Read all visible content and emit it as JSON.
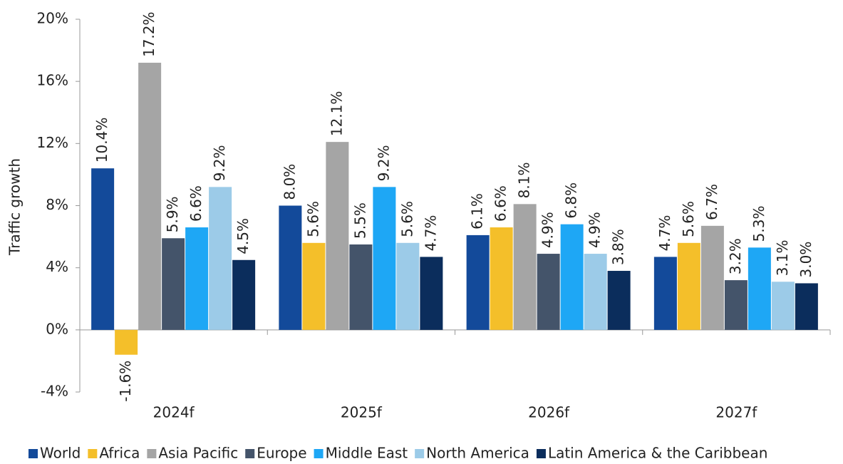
{
  "chart_data": {
    "type": "bar",
    "y_label": "Traffic growth",
    "categories": [
      "2024f",
      "2025f",
      "2026f",
      "2027f"
    ],
    "series": [
      {
        "name": "World",
        "color": "#134a9a",
        "values": [
          10.4,
          8.0,
          6.1,
          4.7
        ],
        "value_labels": [
          "10.4%",
          "8.0%",
          "6.1%",
          "4.7%"
        ]
      },
      {
        "name": "Africa",
        "color": "#f4bf2a",
        "values": [
          -1.6,
          5.6,
          6.6,
          5.6
        ],
        "value_labels": [
          "-1.6%",
          "5.6%",
          "6.6%",
          "5.6%"
        ]
      },
      {
        "name": "Asia Pacific",
        "color": "#a5a5a5",
        "values": [
          17.2,
          12.1,
          8.1,
          6.7
        ],
        "value_labels": [
          "17.2%",
          "12.1%",
          "8.1%",
          "6.7%"
        ]
      },
      {
        "name": "Europe",
        "color": "#44546a",
        "values": [
          5.9,
          5.5,
          4.9,
          3.2
        ],
        "value_labels": [
          "5.9%",
          "5.5%",
          "4.9%",
          "3.2%"
        ]
      },
      {
        "name": "Middle East",
        "color": "#1ea7f5",
        "values": [
          6.6,
          9.2,
          6.8,
          5.3
        ],
        "value_labels": [
          "6.6%",
          "9.2%",
          "6.8%",
          "5.3%"
        ]
      },
      {
        "name": "North America",
        "color": "#9ccbe8",
        "values": [
          9.2,
          5.6,
          4.9,
          3.1
        ],
        "value_labels": [
          "9.2%",
          "5.6%",
          "4.9%",
          "3.1%"
        ]
      },
      {
        "name": "Latin America & the Caribbean",
        "color": "#0b2d5c",
        "values": [
          4.5,
          4.7,
          3.8,
          3.0
        ],
        "value_labels": [
          "4.5%",
          "4.7%",
          "3.8%",
          "3.0%"
        ]
      }
    ],
    "ylim": [
      -4,
      20
    ],
    "yticks": [
      {
        "value": -4,
        "label": "-4%"
      },
      {
        "value": 0,
        "label": "0%"
      },
      {
        "value": 4,
        "label": "4%"
      },
      {
        "value": 8,
        "label": "8%"
      },
      {
        "value": 12,
        "label": "12%"
      },
      {
        "value": 16,
        "label": "16%"
      },
      {
        "value": 20,
        "label": "20%"
      }
    ],
    "legend": "bottom"
  }
}
